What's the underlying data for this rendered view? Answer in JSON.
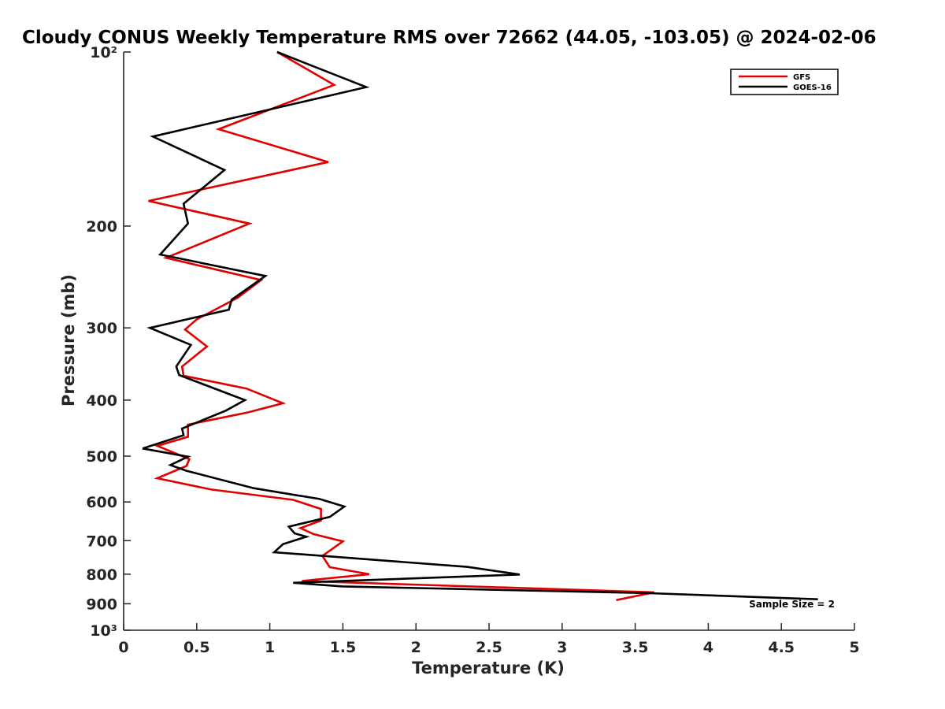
{
  "chart_data": {
    "type": "line",
    "title": "Cloudy CONUS Weekly Temperature RMS over 72662 (44.05, -103.05) @ 2024-02-06",
    "xlabel": "Temperature (K)",
    "ylabel": "Pressure (mb)",
    "xlim": [
      0,
      5
    ],
    "ylim": [
      100,
      1000
    ],
    "y_scale": "log",
    "y_reversed": true,
    "x_ticks": [
      0,
      0.5,
      1,
      1.5,
      2,
      2.5,
      3,
      3.5,
      4,
      4.5,
      5
    ],
    "x_tick_labels": [
      "0",
      "0.5",
      "1",
      "1.5",
      "2",
      "2.5",
      "3",
      "3.5",
      "4",
      "4.5",
      "5"
    ],
    "y_ticks": [
      100,
      200,
      300,
      400,
      500,
      600,
      700,
      800,
      900,
      1000
    ],
    "y_tick_labels": [
      "10²",
      "200",
      "300",
      "400",
      "500",
      "600",
      "700",
      "800",
      "900",
      "10³"
    ],
    "legend": {
      "position": "top-right",
      "entries": [
        "GFS",
        "GOES-16"
      ]
    },
    "annotation": "Sample Size = 2",
    "series": [
      {
        "name": "GFS",
        "color": "#e00000",
        "points": [
          [
            1.05,
            100
          ],
          [
            1.44,
            114
          ],
          [
            0.65,
            136
          ],
          [
            1.4,
            155
          ],
          [
            0.17,
            181
          ],
          [
            0.86,
            198
          ],
          [
            0.29,
            227
          ],
          [
            0.94,
            248
          ],
          [
            0.78,
            266
          ],
          [
            0.5,
            290
          ],
          [
            0.42,
            302
          ],
          [
            0.57,
            323
          ],
          [
            0.4,
            350
          ],
          [
            0.41,
            363
          ],
          [
            0.84,
            382
          ],
          [
            1.09,
            405
          ],
          [
            0.85,
            420
          ],
          [
            0.44,
            441
          ],
          [
            0.44,
            463
          ],
          [
            0.23,
            480
          ],
          [
            0.45,
            506
          ],
          [
            0.43,
            520
          ],
          [
            0.23,
            546
          ],
          [
            0.6,
            571
          ],
          [
            1.16,
            595
          ],
          [
            1.35,
            617
          ],
          [
            1.35,
            646
          ],
          [
            1.21,
            666
          ],
          [
            1.3,
            682
          ],
          [
            1.5,
            702
          ],
          [
            1.36,
            744
          ],
          [
            1.41,
            778
          ],
          [
            1.68,
            800
          ],
          [
            1.22,
            822
          ],
          [
            3.63,
            860
          ],
          [
            3.37,
            887
          ]
        ]
      },
      {
        "name": "GOES-16",
        "color": "#000000",
        "points": [
          [
            1.05,
            100
          ],
          [
            1.66,
            115
          ],
          [
            0.2,
            140
          ],
          [
            0.69,
            160
          ],
          [
            0.41,
            183
          ],
          [
            0.44,
            198
          ],
          [
            0.25,
            224
          ],
          [
            0.97,
            244
          ],
          [
            0.74,
            268
          ],
          [
            0.72,
            279
          ],
          [
            0.18,
            300
          ],
          [
            0.46,
            321
          ],
          [
            0.36,
            350
          ],
          [
            0.38,
            362
          ],
          [
            0.83,
            400
          ],
          [
            0.7,
            417
          ],
          [
            0.4,
            448
          ],
          [
            0.41,
            460
          ],
          [
            0.13,
            485
          ],
          [
            0.44,
            501
          ],
          [
            0.32,
            518
          ],
          [
            0.43,
            530
          ],
          [
            0.89,
            568
          ],
          [
            1.34,
            593
          ],
          [
            1.51,
            611
          ],
          [
            1.41,
            637
          ],
          [
            1.13,
            662
          ],
          [
            1.17,
            680
          ],
          [
            1.25,
            689
          ],
          [
            1.09,
            710
          ],
          [
            1.03,
            733
          ],
          [
            2.35,
            777
          ],
          [
            2.71,
            801
          ],
          [
            1.16,
            828
          ],
          [
            1.5,
            840
          ],
          [
            3.6,
            863
          ],
          [
            4.75,
            884
          ]
        ]
      }
    ]
  }
}
